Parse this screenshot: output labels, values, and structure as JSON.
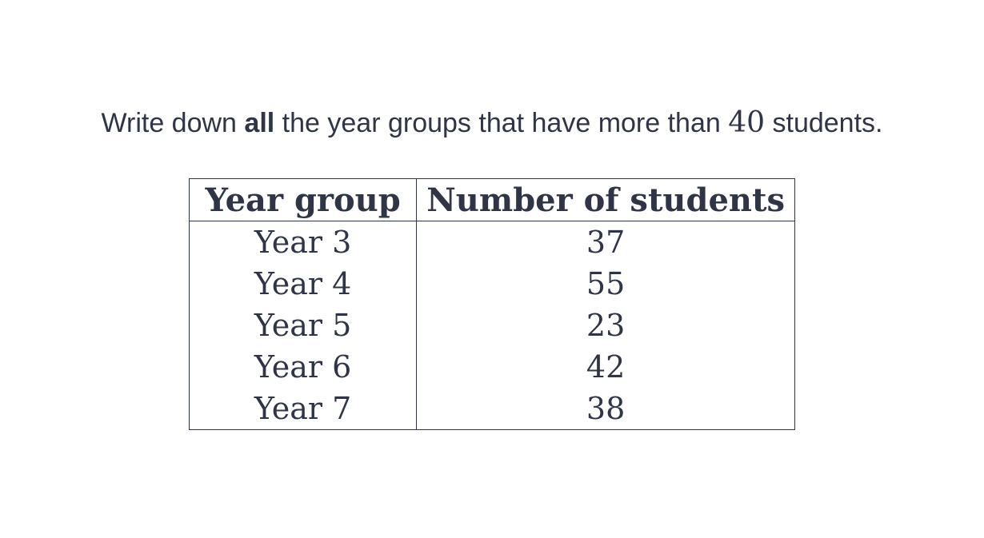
{
  "question": {
    "prefix": "Write down ",
    "emphasis": "all",
    "middle": " the year groups that have more than ",
    "number": "40",
    "suffix": " students."
  },
  "table": {
    "headers": [
      "Year group",
      "Number of students"
    ],
    "rows": [
      [
        "Year 3",
        "37"
      ],
      [
        "Year 4",
        "55"
      ],
      [
        "Year 5",
        "23"
      ],
      [
        "Year 6",
        "42"
      ],
      [
        "Year 7",
        "38"
      ]
    ]
  }
}
